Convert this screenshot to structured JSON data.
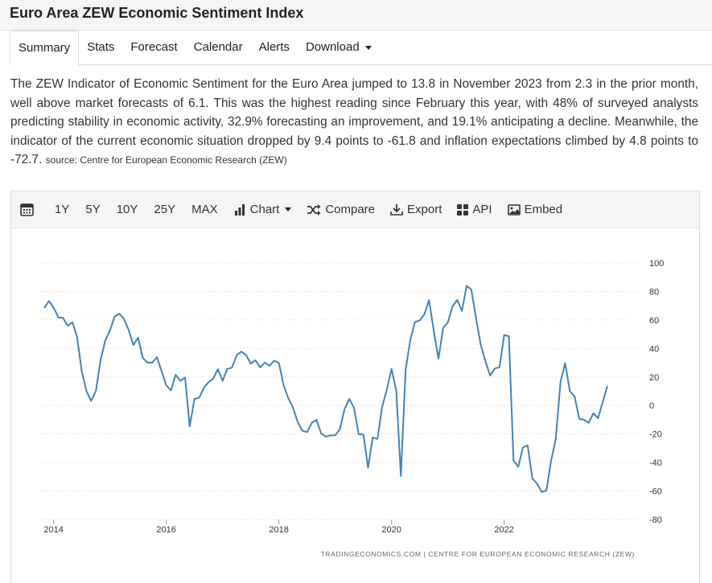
{
  "header": {
    "title": "Euro Area ZEW Economic Sentiment Index"
  },
  "tabs": [
    {
      "label": "Summary",
      "active": true
    },
    {
      "label": "Stats"
    },
    {
      "label": "Forecast"
    },
    {
      "label": "Calendar"
    },
    {
      "label": "Alerts"
    },
    {
      "label": "Download",
      "dropdown": true
    }
  ],
  "description": {
    "text": "The ZEW Indicator of Economic Sentiment for the Euro Area jumped to 13.8 in November 2023 from 2.3 in the prior month, well above market forecasts of 6.1. This was the highest reading since February this year, with 48% of surveyed analysts predicting stability in economic activity, 32.9% forecasting an improvement, and 19.1% anticipating a decline. Meanwhile, the indicator of the current economic situation dropped by 9.4 points to -61.8 and inflation expectations climbed by 4.8 points to -72.7.",
    "source": "source: Centre for European Economic Research (ZEW)"
  },
  "toolbar": {
    "ranges": [
      "1Y",
      "5Y",
      "10Y",
      "25Y",
      "MAX"
    ],
    "chart_label": "Chart",
    "compare_label": "Compare",
    "export_label": "Export",
    "api_label": "API",
    "embed_label": "Embed"
  },
  "chart_data": {
    "type": "line",
    "title": "",
    "xlabel": "",
    "ylabel": "",
    "ylim": [
      -80,
      100
    ],
    "yticks": [
      100,
      80,
      60,
      40,
      20,
      0,
      -20,
      -40,
      -60,
      -80
    ],
    "xticks": [
      "2014",
      "2016",
      "2018",
      "2020",
      "2022"
    ],
    "xrange": [
      "2014-01",
      "2023-11"
    ],
    "grid": "horizontal",
    "y_axis_side": "right",
    "color": "#4682b4",
    "footer": "TRADINGECONOMICS.COM | CENTRE FOR EUROPEAN ECONOMIC RESEARCH (ZEW)",
    "series": [
      {
        "x": [
          "2013-11",
          "2013-12",
          "2014-01",
          "2014-02",
          "2014-03",
          "2014-04",
          "2014-05",
          "2014-06",
          "2014-07",
          "2014-08",
          "2014-09",
          "2014-10",
          "2014-11",
          "2014-12",
          "2015-01",
          "2015-02",
          "2015-03",
          "2015-04",
          "2015-05",
          "2015-06",
          "2015-07",
          "2015-08",
          "2015-09",
          "2015-10",
          "2015-11",
          "2015-12",
          "2016-01",
          "2016-02",
          "2016-03",
          "2016-04",
          "2016-05",
          "2016-06",
          "2016-07",
          "2016-08",
          "2016-09",
          "2016-10",
          "2016-11",
          "2016-12",
          "2017-01",
          "2017-02",
          "2017-03",
          "2017-04",
          "2017-05",
          "2017-06",
          "2017-07",
          "2017-08",
          "2017-09",
          "2017-10",
          "2017-11",
          "2017-12",
          "2018-01",
          "2018-02",
          "2018-03",
          "2018-04",
          "2018-05",
          "2018-06",
          "2018-07",
          "2018-08",
          "2018-09",
          "2018-10",
          "2018-11",
          "2018-12",
          "2019-01",
          "2019-02",
          "2019-03",
          "2019-04",
          "2019-05",
          "2019-06",
          "2019-07",
          "2019-08",
          "2019-09",
          "2019-10",
          "2019-11",
          "2019-12",
          "2020-01",
          "2020-02",
          "2020-03",
          "2020-04",
          "2020-05",
          "2020-06",
          "2020-07",
          "2020-08",
          "2020-09",
          "2020-10",
          "2020-11",
          "2020-12",
          "2021-01",
          "2021-02",
          "2021-03",
          "2021-04",
          "2021-05",
          "2021-06",
          "2021-07",
          "2021-08",
          "2021-09",
          "2021-10",
          "2021-11",
          "2021-12",
          "2022-01",
          "2022-02",
          "2022-03",
          "2022-04",
          "2022-05",
          "2022-06",
          "2022-07",
          "2022-08",
          "2022-09",
          "2022-10",
          "2022-11",
          "2022-12",
          "2023-01",
          "2023-02",
          "2023-03",
          "2023-04",
          "2023-05",
          "2023-06",
          "2023-07",
          "2023-08",
          "2023-09",
          "2023-10",
          "2023-11"
        ],
        "values": [
          68.3,
          73.3,
          68.7,
          61.8,
          61.5,
          55.9,
          58.4,
          48.1,
          23.7,
          10.1,
          3.2,
          10.1,
          31.8,
          45.5,
          52.7,
          62.4,
          64.4,
          60.6,
          52.9,
          42.4,
          47.6,
          33.3,
          30.1,
          30.1,
          33.9,
          24.0,
          14.2,
          10.6,
          21.5,
          17.3,
          19.6,
          -14.7,
          4.6,
          5.4,
          12.3,
          16.4,
          18.8,
          25.5,
          17.3,
          25.6,
          26.6,
          35.2,
          37.8,
          35.4,
          29.3,
          31.7,
          26.7,
          30.1,
          27.9,
          31.5,
          29.8,
          14.2,
          5.2,
          -1.5,
          -11.6,
          -17.7,
          -18.7,
          -12.2,
          -10.1,
          -19.6,
          -21.9,
          -21.0,
          -20.9,
          -16.6,
          -2.5,
          4.5,
          -1.6,
          -20.2,
          -20.3,
          -43.6,
          -22.4,
          -23.5,
          -1.0,
          11.2,
          25.6,
          10.4,
          -49.5,
          25.2,
          46.0,
          58.6,
          59.6,
          64.0,
          73.9,
          52.3,
          32.8,
          54.4,
          58.3,
          69.6,
          74.0,
          66.3,
          84.0,
          81.3,
          61.2,
          42.7,
          31.1,
          21.0,
          25.9,
          26.8,
          49.4,
          48.6,
          -38.7,
          -43.0,
          -29.5,
          -28.0,
          -51.1,
          -54.9,
          -60.7,
          -59.7,
          -38.7,
          -23.6,
          16.7,
          29.7,
          10.0,
          6.4,
          -9.4,
          -10.0,
          -12.2,
          -5.5,
          -8.9,
          2.3,
          13.8
        ]
      }
    ]
  }
}
